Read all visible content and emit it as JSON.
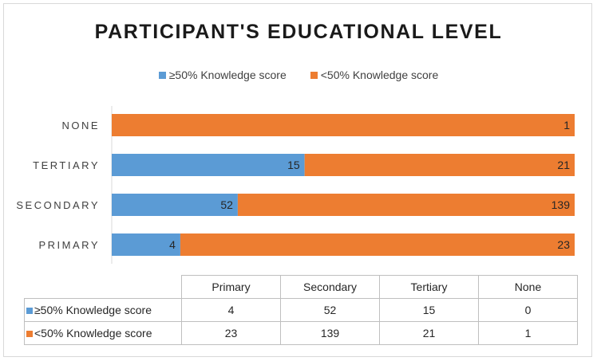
{
  "chart_data": {
    "type": "bar",
    "orientation": "horizontal",
    "stacked": true,
    "title": "PARTICIPANT'S EDUCATIONAL LEVEL",
    "categories": [
      "NONE",
      "TERTIARY",
      "SECONDARY",
      "PRIMARY"
    ],
    "series": [
      {
        "name": "≥50% Knowledge score",
        "color": "#5b9bd5",
        "values": [
          0,
          15,
          52,
          4
        ]
      },
      {
        "name": "<50% Knowledge score",
        "color": "#ed7d31",
        "values": [
          1,
          21,
          139,
          23
        ]
      }
    ],
    "normalized_to_100_percent": true,
    "legend_position": "top",
    "grid": false,
    "data_table": {
      "columns": [
        "Primary",
        "Secondary",
        "Tertiary",
        "None"
      ],
      "rows": [
        {
          "label": "≥50% Knowledge score",
          "color": "#5b9bd5",
          "values": [
            "4",
            "52",
            "15",
            "0"
          ]
        },
        {
          "label": "<50% Knowledge score",
          "color": "#ed7d31",
          "values": [
            "23",
            "139",
            "21",
            "1"
          ]
        }
      ]
    }
  }
}
